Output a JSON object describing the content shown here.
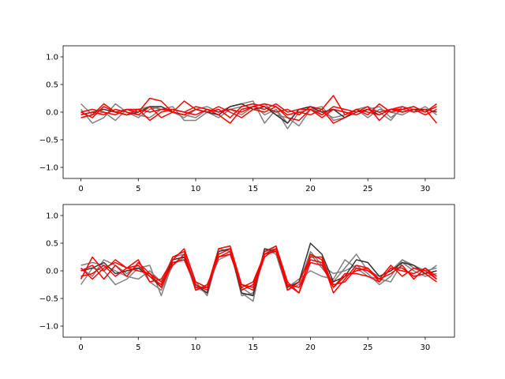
{
  "chart_data": [
    {
      "type": "line",
      "xlim": [
        -1.55,
        32.55
      ],
      "ylim": [
        -1.2,
        1.2
      ],
      "xticks": [
        0,
        5,
        10,
        15,
        20,
        25,
        30
      ],
      "xtick_labels": [
        "0",
        "5",
        "10",
        "15",
        "20",
        "25",
        "30"
      ],
      "yticks": [
        -1.0,
        -0.5,
        0.0,
        0.5,
        1.0
      ],
      "ytick_labels": [
        "−1.0",
        "−0.5",
        "0.0",
        "0.5",
        "1.0"
      ],
      "grid": false,
      "colors": {
        "gray_series": "#808080",
        "dark_series": "#333333",
        "red_series": "#ff0000"
      },
      "series": [
        {
          "color": "#808080",
          "values": [
            0.15,
            -0.05,
            0.1,
            0.0,
            -0.05,
            0.05,
            0.1,
            0.05,
            0.0,
            -0.1,
            0.05,
            0.1,
            0.0,
            0.05,
            0.1,
            0.15,
            -0.05,
            0.05,
            -0.2,
            0.05,
            0.1,
            -0.05,
            0.05,
            0.0,
            -0.05,
            0.05,
            0.1,
            -0.1,
            0.05,
            0.0,
            0.1,
            -0.05
          ]
        },
        {
          "color": "#808080",
          "values": [
            0.05,
            -0.2,
            -0.1,
            0.15,
            0.0,
            -0.1,
            0.05,
            0.1,
            0.0,
            -0.05,
            -0.1,
            0.05,
            0.0,
            0.1,
            0.15,
            0.2,
            -0.2,
            0.05,
            -0.3,
            0.0,
            0.05,
            0.1,
            -0.15,
            -0.1,
            0.05,
            0.1,
            0.0,
            -0.15,
            0.1,
            0.05,
            -0.05,
            0.05
          ]
        },
        {
          "color": "#808080",
          "values": [
            -0.1,
            -0.05,
            0.0,
            -0.15,
            0.05,
            -0.05,
            -0.1,
            0.05,
            0.1,
            -0.15,
            -0.15,
            0.0,
            -0.1,
            0.05,
            -0.05,
            0.1,
            0.15,
            -0.05,
            -0.1,
            -0.25,
            0.05,
            0.0,
            -0.1,
            -0.05,
            0.05,
            -0.1,
            0.05,
            0.0,
            -0.05,
            0.05,
            0.0,
            0.1
          ]
        },
        {
          "color": "#333333",
          "values": [
            -0.05,
            0.0,
            0.05,
            0.0,
            -0.05,
            0.0,
            0.1,
            0.1,
            0.0,
            -0.05,
            0.05,
            0.0,
            -0.05,
            0.1,
            0.15,
            0.05,
            0.1,
            -0.05,
            -0.2,
            0.05,
            0.1,
            0.0,
            0.05,
            -0.1,
            0.0,
            0.05,
            -0.05,
            0.05,
            0.0,
            0.05,
            0.05,
            0.0
          ]
        },
        {
          "color": "#ff0000",
          "values": [
            -0.1,
            -0.05,
            0.15,
            0.0,
            0.05,
            0.0,
            0.25,
            0.2,
            0.0,
            0.2,
            0.05,
            0.0,
            0.05,
            -0.1,
            0.1,
            0.15,
            0.1,
            0.0,
            0.05,
            -0.05,
            0.1,
            0.05,
            0.3,
            -0.05,
            0.05,
            -0.05,
            0.15,
            0.0,
            0.05,
            0.1,
            0.0,
            0.1
          ]
        },
        {
          "color": "#ff0000",
          "values": [
            0.0,
            -0.1,
            0.1,
            0.0,
            -0.05,
            0.05,
            0.0,
            0.05,
            0.05,
            0.0,
            0.1,
            0.05,
            -0.05,
            -0.2,
            0.05,
            0.1,
            0.15,
            0.1,
            -0.1,
            -0.15,
            0.05,
            -0.05,
            0.1,
            0.05,
            0.0,
            0.1,
            -0.15,
            0.05,
            0.1,
            0.0,
            0.05,
            -0.2
          ]
        },
        {
          "color": "#ff0000",
          "values": [
            -0.05,
            0.0,
            -0.05,
            0.05,
            0.0,
            -0.05,
            0.1,
            -0.1,
            0.0,
            -0.05,
            0.05,
            0.0,
            0.1,
            0.0,
            -0.1,
            0.05,
            0.0,
            0.1,
            -0.05,
            0.0,
            -0.05,
            0.05,
            -0.2,
            -0.1,
            0.05,
            0.0,
            -0.05,
            0.05,
            0.0,
            0.05,
            -0.05,
            0.05
          ]
        },
        {
          "color": "#ff0000",
          "values": [
            0.0,
            0.05,
            0.0,
            -0.05,
            0.05,
            0.05,
            -0.15,
            0.0,
            0.05,
            0.0,
            -0.05,
            0.05,
            0.0,
            0.05,
            0.0,
            0.1,
            0.05,
            0.15,
            0.0,
            0.05,
            0.05,
            -0.1,
            0.05,
            0.0,
            -0.05,
            0.05,
            0.0,
            0.05,
            0.05,
            0.1,
            0.0,
            0.15
          ]
        }
      ]
    },
    {
      "type": "line",
      "xlim": [
        -1.55,
        32.55
      ],
      "ylim": [
        -1.2,
        1.2
      ],
      "xticks": [
        0,
        5,
        10,
        15,
        20,
        25,
        30
      ],
      "xtick_labels": [
        "0",
        "5",
        "10",
        "15",
        "20",
        "25",
        "30"
      ],
      "yticks": [
        -1.0,
        -0.5,
        0.0,
        0.5,
        1.0
      ],
      "ytick_labels": [
        "−1.0",
        "−0.5",
        "0.0",
        "0.5",
        "1.0"
      ],
      "grid": false,
      "colors": {
        "gray_series": "#808080",
        "dark_series": "#333333",
        "red_series": "#ff0000"
      },
      "series": [
        {
          "color": "#808080",
          "values": [
            -0.25,
            0.05,
            0.0,
            -0.25,
            -0.15,
            0.05,
            0.1,
            -0.45,
            0.15,
            0.2,
            -0.3,
            -0.4,
            0.4,
            0.35,
            -0.4,
            -0.55,
            0.4,
            0.3,
            -0.35,
            -0.2,
            0.3,
            0.05,
            -0.2,
            0.05,
            0.3,
            0.0,
            -0.1,
            0.0,
            0.2,
            0.1,
            0.0,
            0.05
          ]
        },
        {
          "color": "#808080",
          "values": [
            0.1,
            0.15,
            0.1,
            0.0,
            -0.1,
            -0.15,
            0.0,
            -0.2,
            0.25,
            0.3,
            -0.2,
            -0.45,
            0.3,
            0.4,
            -0.45,
            -0.4,
            0.35,
            0.4,
            -0.3,
            -0.15,
            0.0,
            -0.1,
            -0.15,
            0.2,
            0.05,
            -0.1,
            -0.15,
            -0.2,
            0.15,
            0.0,
            -0.1,
            -0.05
          ]
        },
        {
          "color": "#808080",
          "values": [
            0.05,
            -0.1,
            0.2,
            0.1,
            -0.05,
            0.1,
            -0.2,
            -0.35,
            0.1,
            0.25,
            -0.35,
            -0.3,
            0.2,
            0.3,
            -0.3,
            -0.45,
            0.3,
            0.45,
            -0.35,
            -0.25,
            0.35,
            0.1,
            -0.05,
            0.0,
            0.1,
            -0.05,
            -0.25,
            -0.1,
            0.2,
            0.05,
            -0.05,
            0.1
          ]
        },
        {
          "color": "#333333",
          "values": [
            0.0,
            0.05,
            0.15,
            -0.05,
            0.0,
            0.05,
            -0.1,
            -0.3,
            0.2,
            0.25,
            -0.25,
            -0.4,
            0.35,
            0.4,
            -0.4,
            -0.45,
            0.4,
            0.35,
            -0.3,
            -0.2,
            0.5,
            0.3,
            -0.2,
            -0.1,
            0.2,
            0.15,
            -0.1,
            0.0,
            0.15,
            0.1,
            -0.05,
            0.0
          ]
        },
        {
          "color": "#ff0000",
          "values": [
            -0.15,
            0.25,
            0.0,
            0.2,
            0.05,
            0.2,
            -0.2,
            -0.15,
            0.2,
            0.4,
            -0.2,
            -0.3,
            0.4,
            0.45,
            -0.25,
            -0.3,
            0.35,
            0.45,
            -0.2,
            -0.4,
            0.3,
            0.2,
            -0.4,
            -0.15,
            0.1,
            0.05,
            -0.15,
            -0.05,
            0.1,
            -0.15,
            0.05,
            -0.1
          ]
        },
        {
          "color": "#ff0000",
          "values": [
            0.05,
            -0.15,
            0.05,
            0.15,
            0.05,
            0.1,
            -0.1,
            -0.25,
            0.25,
            0.35,
            -0.35,
            -0.25,
            0.25,
            0.35,
            -0.3,
            -0.2,
            0.3,
            0.4,
            -0.35,
            -0.2,
            0.25,
            0.25,
            -0.3,
            -0.1,
            0.0,
            0.05,
            -0.2,
            0.05,
            0.05,
            -0.1,
            -0.05,
            -0.2
          ]
        },
        {
          "color": "#ff0000",
          "values": [
            0.0,
            0.1,
            -0.15,
            0.1,
            -0.1,
            0.15,
            -0.05,
            -0.3,
            0.15,
            0.2,
            -0.25,
            -0.35,
            0.3,
            0.4,
            -0.35,
            -0.25,
            0.3,
            0.35,
            -0.25,
            -0.3,
            0.2,
            0.15,
            -0.25,
            -0.2,
            0.05,
            0.0,
            -0.15,
            0.1,
            -0.1,
            0.05,
            0.0,
            -0.15
          ]
        },
        {
          "color": "#ff0000",
          "values": [
            -0.1,
            -0.05,
            0.1,
            -0.1,
            0.05,
            0.0,
            -0.05,
            -0.2,
            0.1,
            0.3,
            -0.3,
            -0.3,
            0.25,
            0.3,
            -0.25,
            -0.35,
            0.25,
            0.4,
            -0.25,
            -0.4,
            0.15,
            0.1,
            -0.3,
            -0.05,
            -0.05,
            -0.1,
            -0.2,
            0.05,
            0.0,
            -0.05,
            0.05,
            -0.15
          ]
        }
      ]
    }
  ]
}
